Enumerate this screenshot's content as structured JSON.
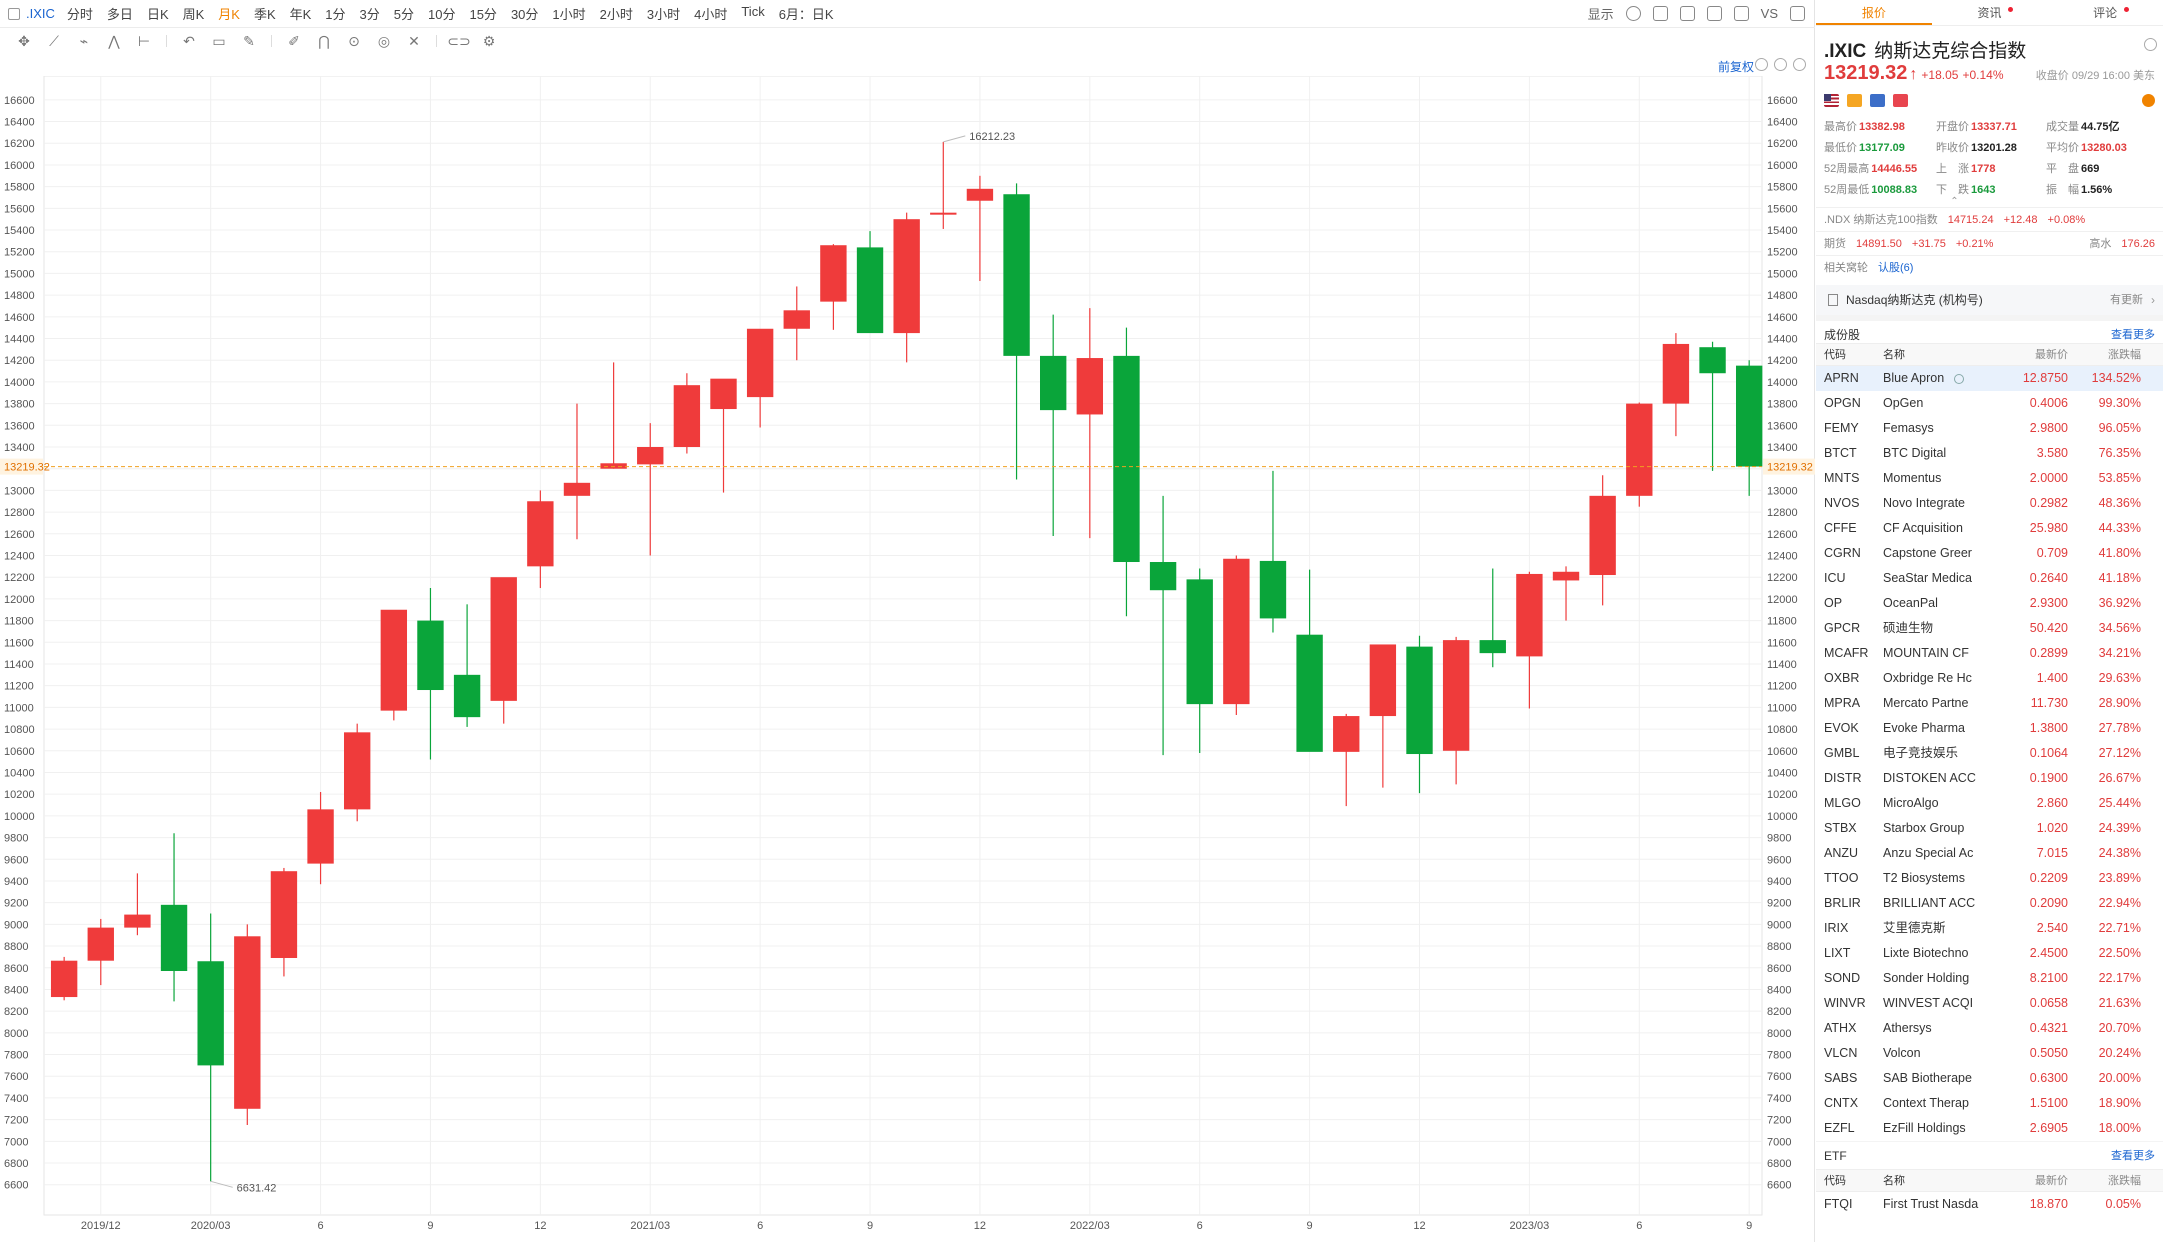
{
  "toolbar": {
    "symbol": ".IXIC",
    "periods": [
      "分时",
      "多日",
      "日K",
      "周K",
      "月K",
      "季K",
      "年K",
      "1分",
      "3分",
      "5分",
      "10分",
      "15分",
      "30分",
      "1小时",
      "2小时",
      "3小时",
      "4小时",
      "Tick",
      "6月：日K"
    ],
    "active_period": "月K",
    "display_label": "显示",
    "vs_label": "VS"
  },
  "drawing_tools": [
    "crosshair-icon",
    "trendline-icon",
    "fib-icon",
    "pattern-icon",
    "measure-icon",
    "undo-icon",
    "timeframe-icon",
    "note-icon",
    "pen-icon",
    "magnet-icon",
    "lock-icon",
    "hide-icon",
    "trash-icon",
    "compare-icon",
    "settings-icon"
  ],
  "adjust_label": "前复权",
  "colors": {
    "up": "#ef3b3b",
    "down": "#0aa53a",
    "accent": "#f08300",
    "link": "#1a64d0",
    "crosshair": "#f0a020"
  },
  "chart_data": {
    "type": "candlestick",
    "symbol": ".IXIC",
    "period": "月K",
    "x_labels": [
      {
        "i": 1,
        "label": "2019/12"
      },
      {
        "i": 4,
        "label": "2020/03"
      },
      {
        "i": 7,
        "label": "6"
      },
      {
        "i": 10,
        "label": "9"
      },
      {
        "i": 13,
        "label": "12"
      },
      {
        "i": 16,
        "label": "2021/03"
      },
      {
        "i": 19,
        "label": "6"
      },
      {
        "i": 22,
        "label": "9"
      },
      {
        "i": 25,
        "label": "12"
      },
      {
        "i": 28,
        "label": "2022/03"
      },
      {
        "i": 31,
        "label": "6"
      },
      {
        "i": 34,
        "label": "9"
      },
      {
        "i": 37,
        "label": "12"
      },
      {
        "i": 40,
        "label": "2023/03"
      },
      {
        "i": 43,
        "label": "6"
      },
      {
        "i": 46,
        "label": "9"
      }
    ],
    "y_range": [
      6450,
      16700
    ],
    "y_ticks": [
      6600,
      6800,
      7000,
      7200,
      7400,
      7600,
      7800,
      8000,
      8200,
      8400,
      8600,
      8800,
      9000,
      9200,
      9400,
      9600,
      9800,
      10000,
      10200,
      10400,
      10600,
      10800,
      11000,
      11200,
      11400,
      11600,
      11800,
      12000,
      12200,
      12400,
      12600,
      12800,
      13000,
      13200,
      13400,
      13600,
      13800,
      14000,
      14200,
      14400,
      14600,
      14800,
      15000,
      15200,
      15400,
      15600,
      15800,
      16000,
      16200,
      16400,
      16600
    ],
    "candles": [
      {
        "o": 8330,
        "h": 8700,
        "l": 8300,
        "c": 8665
      },
      {
        "o": 8665,
        "h": 9050,
        "l": 8440,
        "c": 8970
      },
      {
        "o": 8970,
        "h": 9470,
        "l": 8900,
        "c": 9090
      },
      {
        "o": 9180,
        "h": 9840,
        "l": 8290,
        "c": 8570
      },
      {
        "o": 8660,
        "h": 9100,
        "l": 6631.42,
        "c": 7700
      },
      {
        "o": 7300,
        "h": 9000,
        "l": 7150,
        "c": 8890
      },
      {
        "o": 8690,
        "h": 9520,
        "l": 8520,
        "c": 9490
      },
      {
        "o": 9560,
        "h": 10220,
        "l": 9370,
        "c": 10060
      },
      {
        "o": 10060,
        "h": 10850,
        "l": 9950,
        "c": 10770
      },
      {
        "o": 10970,
        "h": 11880,
        "l": 10880,
        "c": 11900
      },
      {
        "o": 11800,
        "h": 12100,
        "l": 10520,
        "c": 11160
      },
      {
        "o": 11300,
        "h": 11950,
        "l": 10820,
        "c": 10910
      },
      {
        "o": 11060,
        "h": 12120,
        "l": 10850,
        "c": 12200
      },
      {
        "o": 12300,
        "h": 13000,
        "l": 12100,
        "c": 12900
      },
      {
        "o": 12950,
        "h": 13800,
        "l": 12550,
        "c": 13070
      },
      {
        "o": 13200,
        "h": 14180,
        "l": 13200,
        "c": 13250
      },
      {
        "o": 13240,
        "h": 13620,
        "l": 12400,
        "c": 13400
      },
      {
        "o": 13400,
        "h": 14080,
        "l": 13340,
        "c": 13970
      },
      {
        "o": 13750,
        "h": 14000,
        "l": 12980,
        "c": 14030
      },
      {
        "o": 13860,
        "h": 14480,
        "l": 13580,
        "c": 14490
      },
      {
        "o": 14490,
        "h": 14880,
        "l": 14200,
        "c": 14660
      },
      {
        "o": 14740,
        "h": 15270,
        "l": 14480,
        "c": 15260
      },
      {
        "o": 15240,
        "h": 15390,
        "l": 14470,
        "c": 14450
      },
      {
        "o": 14450,
        "h": 15560,
        "l": 14180,
        "c": 15500
      },
      {
        "o": 15550,
        "h": 16212.23,
        "l": 15410,
        "c": 15560
      },
      {
        "o": 15670,
        "h": 15900,
        "l": 14930,
        "c": 15780
      },
      {
        "o": 15730,
        "h": 15830,
        "l": 13100,
        "c": 14240
      },
      {
        "o": 14240,
        "h": 14620,
        "l": 12580,
        "c": 13740
      },
      {
        "o": 13700,
        "h": 14680,
        "l": 12560,
        "c": 14220
      },
      {
        "o": 14240,
        "h": 14500,
        "l": 11840,
        "c": 12340
      },
      {
        "o": 12340,
        "h": 12950,
        "l": 10560,
        "c": 12080
      },
      {
        "o": 12180,
        "h": 12280,
        "l": 10580,
        "c": 11030
      },
      {
        "o": 11030,
        "h": 12400,
        "l": 10930,
        "c": 12370
      },
      {
        "o": 12350,
        "h": 13180,
        "l": 11690,
        "c": 11820
      },
      {
        "o": 11670,
        "h": 12270,
        "l": 10620,
        "c": 10590
      },
      {
        "o": 10590,
        "h": 10940,
        "l": 10090,
        "c": 10920
      },
      {
        "o": 10920,
        "h": 11540,
        "l": 10260,
        "c": 11580
      },
      {
        "o": 11560,
        "h": 11660,
        "l": 10210,
        "c": 10570
      },
      {
        "o": 10600,
        "h": 11650,
        "l": 10290,
        "c": 11620
      },
      {
        "o": 11620,
        "h": 12280,
        "l": 11370,
        "c": 11500
      },
      {
        "o": 11470,
        "h": 12250,
        "l": 10990,
        "c": 12230
      },
      {
        "o": 12170,
        "h": 12300,
        "l": 11800,
        "c": 12250
      },
      {
        "o": 12220,
        "h": 13140,
        "l": 11940,
        "c": 12950
      },
      {
        "o": 12950,
        "h": 13810,
        "l": 12850,
        "c": 13800
      },
      {
        "o": 13800,
        "h": 14450,
        "l": 13500,
        "c": 14350
      },
      {
        "o": 14320,
        "h": 14370,
        "l": 13180,
        "c": 14080
      },
      {
        "o": 14150,
        "h": 14200,
        "l": 12950,
        "c": 13220
      }
    ],
    "annotations": [
      {
        "label": "16212.23",
        "value": 16212.23,
        "i": 24
      },
      {
        "label": "6631.42",
        "value": 6631.42,
        "i": 4
      }
    ],
    "current_price": 13219.32,
    "current_price_label": "13219.32"
  },
  "quote": {
    "tabs": [
      {
        "label": "报价",
        "dot": false
      },
      {
        "label": "资讯",
        "dot": true
      },
      {
        "label": "评论",
        "dot": true
      }
    ],
    "code": ".IXIC",
    "name": "纳斯达克综合指数",
    "price": "13219.32",
    "change": "+18.05",
    "change_pct": "+0.14%",
    "close_time": "收盘价 09/29 16:00 美东",
    "stats": {
      "high_label": "最高价",
      "high": "13382.98",
      "open_label": "开盘价",
      "open": "13337.71",
      "volume_label": "成交量",
      "volume": "44.75亿",
      "low_label": "最低价",
      "low": "13177.09",
      "prev_label": "昨收价",
      "prev": "13201.28",
      "avg_label": "平均价",
      "avg": "13280.03",
      "wk52h_label": "52周最高",
      "wk52h": "14446.55",
      "up_label": "上　涨",
      "up": "1778",
      "flat_label": "平　盘",
      "flat": "669",
      "wk52l_label": "52周最低",
      "wk52l": "10088.83",
      "down_label": "下　跌",
      "down": "1643",
      "amp_label": "振　幅",
      "amp": "1.56%"
    },
    "ndx": {
      "code": ".NDX",
      "name": "纳斯达克100指数",
      "price": "14715.24",
      "change": "+12.48",
      "pct": "+0.08%"
    },
    "futures": {
      "label": "期货",
      "price": "14891.50",
      "change": "+31.75",
      "pct": "+0.21%",
      "premium_label": "高水",
      "premium": "176.26"
    },
    "warrants": {
      "label": "相关窝轮",
      "link": "认股(6)"
    },
    "news": {
      "text": "Nasdaq纳斯达克 (机构号)",
      "update": "有更新"
    }
  },
  "constituents": {
    "title": "成份股",
    "more": "查看更多",
    "headers": [
      "代码",
      "名称",
      "最新价",
      "涨跌幅"
    ],
    "rows": [
      [
        "APRN",
        "Blue Apron",
        "12.8750",
        "134.52%"
      ],
      [
        "OPGN",
        "OpGen",
        "0.4006",
        "99.30%"
      ],
      [
        "FEMY",
        "Femasys",
        "2.9800",
        "96.05%"
      ],
      [
        "BTCT",
        "BTC Digital",
        "3.580",
        "76.35%"
      ],
      [
        "MNTS",
        "Momentus",
        "2.0000",
        "53.85%"
      ],
      [
        "NVOS",
        "Novo Integrate",
        "0.2982",
        "48.36%"
      ],
      [
        "CFFE",
        "CF Acquisition",
        "25.980",
        "44.33%"
      ],
      [
        "CGRN",
        "Capstone Greer",
        "0.709",
        "41.80%"
      ],
      [
        "ICU",
        "SeaStar Medica",
        "0.2640",
        "41.18%"
      ],
      [
        "OP",
        "OceanPal",
        "2.9300",
        "36.92%"
      ],
      [
        "GPCR",
        "硕迪生物",
        "50.420",
        "34.56%"
      ],
      [
        "MCAFR",
        "MOUNTAIN CF",
        "0.2899",
        "34.21%"
      ],
      [
        "OXBR",
        "Oxbridge Re Hc",
        "1.400",
        "29.63%"
      ],
      [
        "MPRA",
        "Mercato Partne",
        "11.730",
        "28.90%"
      ],
      [
        "EVOK",
        "Evoke Pharma",
        "1.3800",
        "27.78%"
      ],
      [
        "GMBL",
        "电子竞技娱乐",
        "0.1064",
        "27.12%"
      ],
      [
        "DISTR",
        "DISTOKEN ACC",
        "0.1900",
        "26.67%"
      ],
      [
        "MLGO",
        "MicroAlgo",
        "2.860",
        "25.44%"
      ],
      [
        "STBX",
        "Starbox Group",
        "1.020",
        "24.39%"
      ],
      [
        "ANZU",
        "Anzu Special Ac",
        "7.015",
        "24.38%"
      ],
      [
        "TTOO",
        "T2 Biosystems",
        "0.2209",
        "23.89%"
      ],
      [
        "BRLIR",
        "BRILLIANT ACC",
        "0.2090",
        "22.94%"
      ],
      [
        "IRIX",
        "艾里德克斯",
        "2.540",
        "22.71%"
      ],
      [
        "LIXT",
        "Lixte Biotechno",
        "2.4500",
        "22.50%"
      ],
      [
        "SOND",
        "Sonder Holding",
        "8.2100",
        "22.17%"
      ],
      [
        "WINVR",
        "WINVEST ACQI",
        "0.0658",
        "21.63%"
      ],
      [
        "ATHX",
        "Athersys",
        "0.4321",
        "20.70%"
      ],
      [
        "VLCN",
        "Volcon",
        "0.5050",
        "20.24%"
      ],
      [
        "SABS",
        "SAB Biotherape",
        "0.6300",
        "20.00%"
      ],
      [
        "CNTX",
        "Context Therap",
        "1.5100",
        "18.90%"
      ],
      [
        "EZFL",
        "EzFill Holdings",
        "2.6905",
        "18.00%"
      ]
    ]
  },
  "etf": {
    "title": "ETF",
    "more": "查看更多",
    "headers": [
      "代码",
      "名称",
      "最新价",
      "涨跌幅"
    ],
    "rows": [
      [
        "FTQI",
        "First Trust Nasda",
        "18.870",
        "0.05%"
      ]
    ]
  }
}
